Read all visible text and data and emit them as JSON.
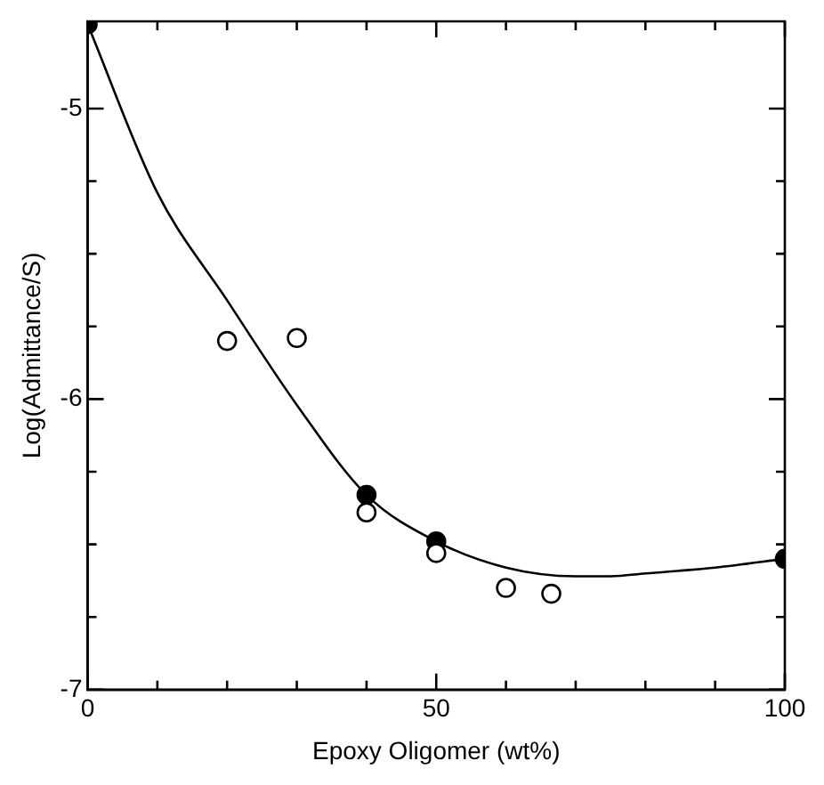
{
  "chart_data": {
    "type": "scatter",
    "xlabel": "Epoxy Oligomer (wt%)",
    "ylabel": "Log(Admittance/S)",
    "xlim": [
      0,
      100
    ],
    "ylim": [
      -7,
      -4.7
    ],
    "xticks": [
      0,
      {
        "value": 10,
        "label": null
      },
      {
        "value": 20,
        "label": null
      },
      {
        "value": 30,
        "label": null
      },
      {
        "value": 40,
        "label": null
      },
      50,
      {
        "value": 60,
        "label": null
      },
      {
        "value": 70,
        "label": null
      },
      {
        "value": 80,
        "label": null
      },
      {
        "value": 90,
        "label": null
      },
      100
    ],
    "yticks": [
      -7,
      {
        "value": -6.75,
        "label": null
      },
      {
        "value": -6.5,
        "label": null
      },
      {
        "value": -6.25,
        "label": null
      },
      -6,
      {
        "value": -5.75,
        "label": null
      },
      {
        "value": -5.5,
        "label": null
      },
      {
        "value": -5.25,
        "label": null
      },
      -5
    ],
    "grid": false,
    "legend": false,
    "marker": "circle",
    "series": [
      {
        "type": "line",
        "color": "#000000",
        "marker": "none",
        "x": [
          0,
          10,
          20,
          30,
          40,
          50,
          60,
          70,
          75,
          80,
          90,
          100
        ],
        "values": [
          -4.71,
          -5.29,
          -5.66,
          -6.02,
          -6.33,
          -6.49,
          -6.58,
          -6.61,
          -6.61,
          -6.6,
          -6.58,
          -6.55
        ]
      },
      {
        "color": "#ffffff",
        "x": [
          20,
          30,
          40,
          50,
          60,
          66.5
        ],
        "values": [
          -5.8,
          -5.79,
          -6.39,
          -6.53,
          -6.65,
          -6.67
        ]
      },
      {
        "color": "#000000",
        "x": [
          0,
          40,
          50,
          100
        ],
        "values": [
          -4.71,
          -6.33,
          -6.49,
          -6.55
        ]
      }
    ]
  }
}
